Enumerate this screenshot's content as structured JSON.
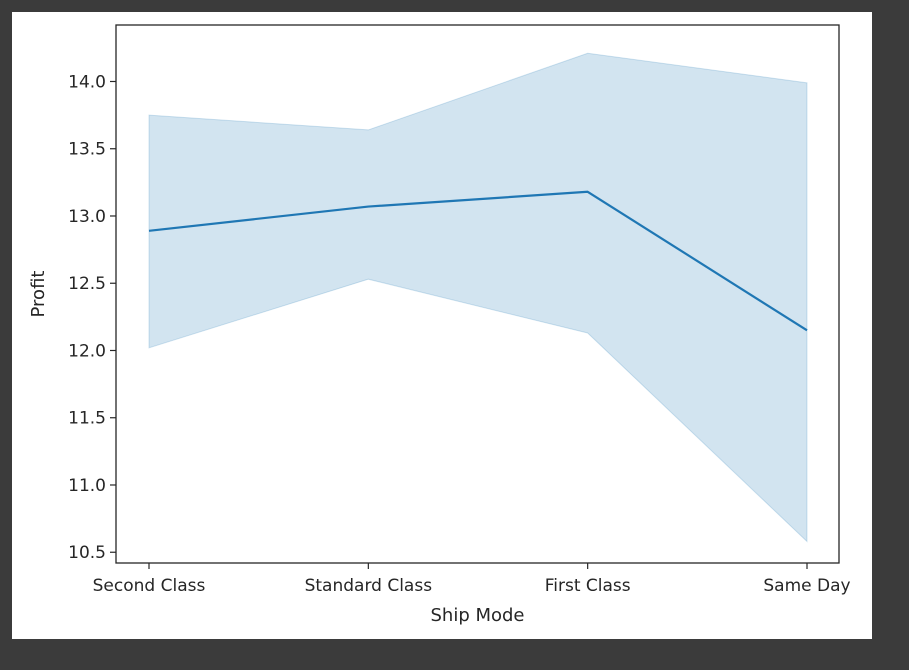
{
  "chart_data": {
    "type": "line",
    "title": "",
    "xlabel": "Ship Mode",
    "ylabel": "Profit",
    "categories": [
      "Second Class",
      "Standard Class",
      "First Class",
      "Same Day"
    ],
    "series": [
      {
        "values": [
          12.89,
          13.07,
          13.18,
          12.15
        ],
        "ci_lower": [
          12.02,
          12.53,
          12.13,
          10.58
        ],
        "ci_upper": [
          13.75,
          13.64,
          14.21,
          13.99
        ]
      }
    ],
    "ylim": [
      10.42,
      14.42
    ],
    "yticks": [
      10.5,
      11.0,
      11.5,
      12.0,
      12.5,
      13.0,
      13.5,
      14.0
    ],
    "ytick_labels": [
      "10.5",
      "11.0",
      "11.5",
      "12.0",
      "12.5",
      "13.0",
      "13.5",
      "14.0"
    ],
    "grid": false,
    "colors": {
      "line": "#1f77b4",
      "band": "#1f77b4"
    }
  }
}
